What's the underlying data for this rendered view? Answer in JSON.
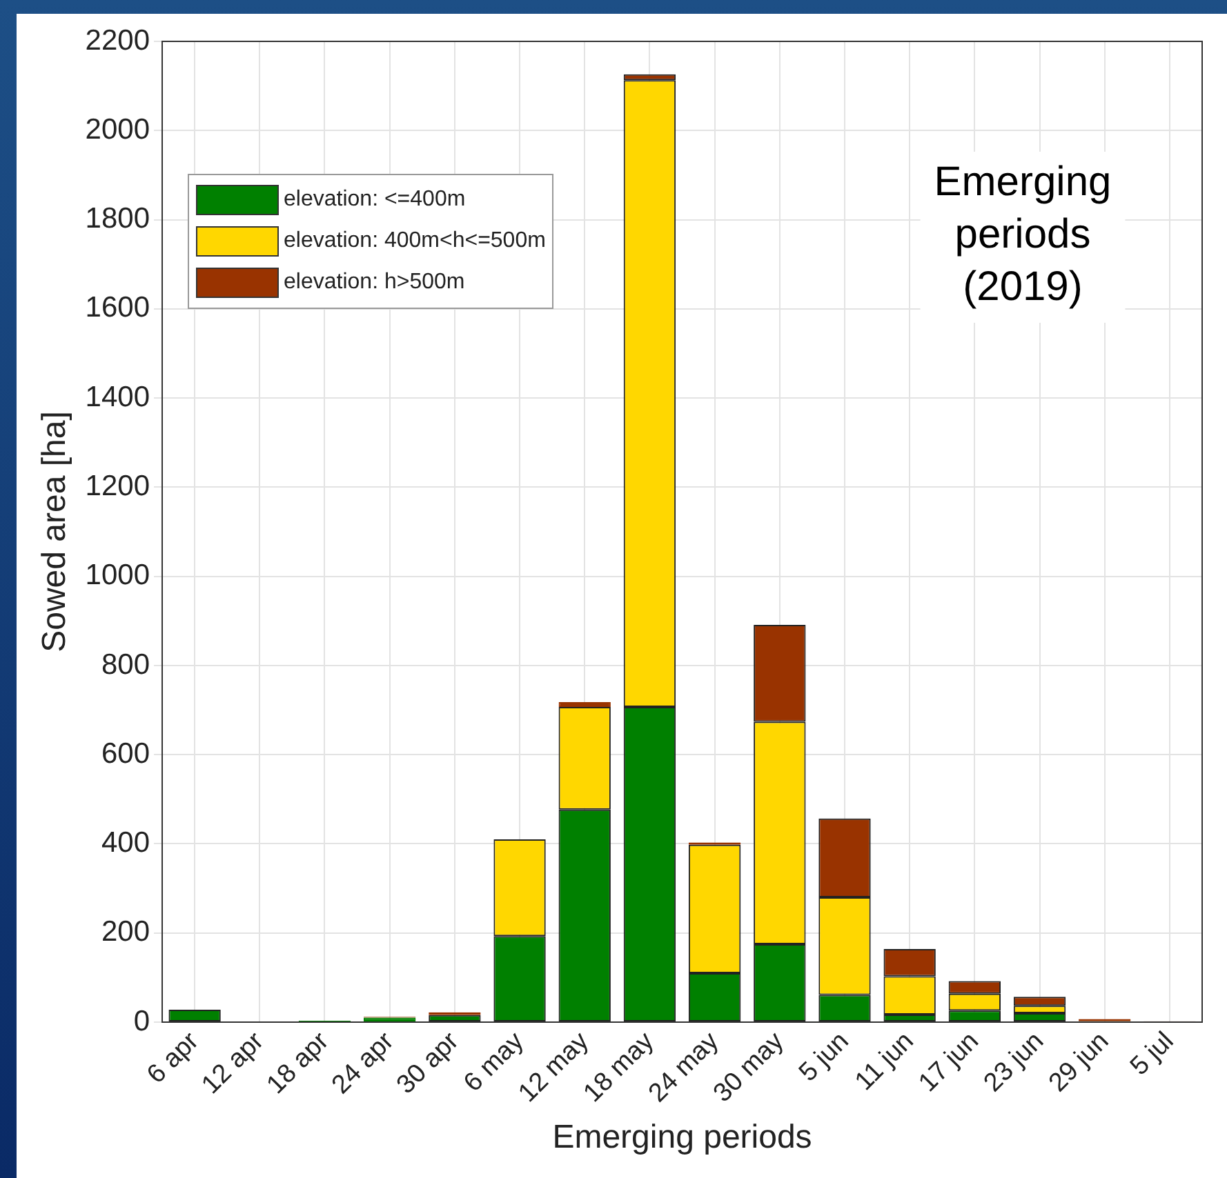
{
  "chart_data": {
    "type": "bar",
    "stacked": true,
    "xlabel": "Emerging periods",
    "ylabel": "Sowed area [ha]",
    "categories": [
      "6 apr",
      "12 apr",
      "18 apr",
      "24 apr",
      "30 apr",
      "6 may",
      "12 may",
      "18 may",
      "24 may",
      "30 may",
      "5 jun",
      "11 jun",
      "17 jun",
      "23 jun",
      "29 jun",
      "5 jul"
    ],
    "series": [
      {
        "name": "elevation: <=400m",
        "color": "#008000",
        "values": [
          28,
          null,
          3,
          10,
          16,
          193,
          477,
          707,
          110,
          175,
          61,
          17,
          26,
          20,
          2,
          null
        ]
      },
      {
        "name": "elevation: 400m<h<=500m",
        "color": "#ffd700",
        "values": [
          null,
          null,
          null,
          null,
          null,
          217,
          230,
          1406,
          288,
          499,
          219,
          86,
          38,
          17,
          null,
          null
        ]
      },
      {
        "name": "elevation: h>500m",
        "color": "#993300",
        "values": [
          null,
          null,
          null,
          2,
          6,
          null,
          11,
          13,
          5,
          217,
          177,
          61,
          28,
          20,
          5,
          2
        ]
      }
    ],
    "ylim": [
      0,
      2200
    ],
    "yticks": [
      0,
      200,
      400,
      600,
      800,
      1000,
      1200,
      1400,
      1600,
      1800,
      2000,
      2200
    ],
    "grid": true,
    "legend": "top left",
    "annotations": [
      "Emerging periods (2019)"
    ]
  }
}
